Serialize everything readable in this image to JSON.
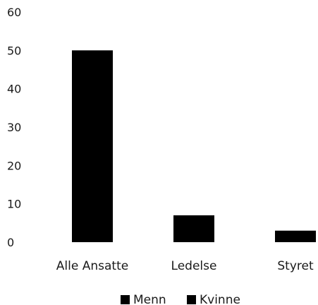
{
  "chart_data": {
    "type": "bar",
    "categories": [
      "Alle Ansatte",
      "Ledelse",
      "Styret"
    ],
    "series": [
      {
        "name": "Menn",
        "values": [
          50,
          7,
          3
        ]
      },
      {
        "name": "Kvinne",
        "values": [
          0,
          0,
          0
        ]
      }
    ],
    "ylim": [
      0,
      60
    ],
    "yticks": [
      0,
      10,
      20,
      30,
      40,
      50,
      60
    ],
    "grid": false,
    "legend_position": "bottom",
    "colors": {
      "Menn": "#000000",
      "Kvinne": "#000000"
    }
  }
}
